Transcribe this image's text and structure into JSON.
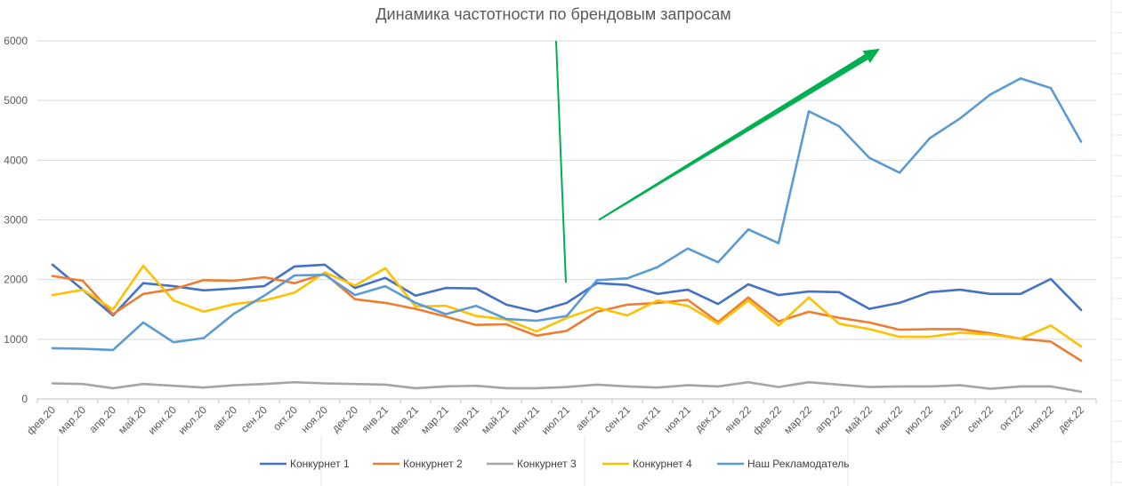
{
  "chart_data": {
    "type": "line",
    "title": "Динамика частотности по брендовым запросам",
    "xlabel": "",
    "ylabel": "",
    "ylim": [
      0,
      6000
    ],
    "yticks": [
      0,
      1000,
      2000,
      3000,
      4000,
      5000,
      6000
    ],
    "grid": true,
    "legend": "bottom",
    "categories": [
      "фев.20",
      "мар.20",
      "апр.20",
      "май.20",
      "июн.20",
      "июл.20",
      "авг.20",
      "сен.20",
      "окт.20",
      "ноя.20",
      "дек.20",
      "янв.21",
      "фев.21",
      "мар.21",
      "апр.21",
      "май.21",
      "июн.21",
      "июл.21",
      "авг.21",
      "сен.21",
      "окт.21",
      "ноя.21",
      "дек.21",
      "янв.22",
      "фев.22",
      "мар.22",
      "апр.22",
      "май.22",
      "июн.22",
      "июл.22",
      "авг.22",
      "сен.22",
      "окт.22",
      "ноя.22",
      "дек.22"
    ],
    "series": [
      {
        "name": "Конкурнет 1",
        "color": "#4472c4",
        "values": [
          2250,
          1830,
          1400,
          1940,
          1890,
          1820,
          1850,
          1890,
          2220,
          2250,
          1860,
          2030,
          1730,
          1860,
          1850,
          1580,
          1460,
          1610,
          1940,
          1910,
          1760,
          1830,
          1590,
          1920,
          1740,
          1800,
          1790,
          1510,
          1610,
          1790,
          1830,
          1760,
          1760,
          2010,
          1490
        ]
      },
      {
        "name": "Конкурнет 2",
        "color": "#ed7d31",
        "values": [
          2060,
          1980,
          1420,
          1760,
          1840,
          1990,
          1980,
          2040,
          1940,
          2100,
          1670,
          1610,
          1510,
          1380,
          1240,
          1250,
          1060,
          1140,
          1460,
          1580,
          1610,
          1660,
          1290,
          1700,
          1300,
          1460,
          1360,
          1280,
          1160,
          1170,
          1170,
          1100,
          1010,
          960,
          640
        ]
      },
      {
        "name": "Конкурнет 3",
        "color": "#a5a5a5",
        "values": [
          260,
          250,
          180,
          250,
          220,
          190,
          230,
          250,
          280,
          260,
          250,
          240,
          180,
          210,
          220,
          180,
          180,
          200,
          240,
          210,
          190,
          230,
          210,
          280,
          200,
          280,
          240,
          200,
          210,
          210,
          230,
          170,
          210,
          210,
          120
        ]
      },
      {
        "name": "Конкурнет 4",
        "color": "#ffc000",
        "values": [
          1740,
          1830,
          1500,
          2230,
          1650,
          1460,
          1590,
          1650,
          1780,
          2120,
          1900,
          2190,
          1550,
          1560,
          1390,
          1330,
          1130,
          1360,
          1530,
          1400,
          1650,
          1560,
          1260,
          1650,
          1230,
          1700,
          1260,
          1170,
          1040,
          1040,
          1110,
          1080,
          1010,
          1230,
          880
        ]
      },
      {
        "name": "Наш Рекламодатель",
        "color": "#5b9bd5",
        "values": [
          850,
          840,
          820,
          1280,
          950,
          1020,
          1430,
          1730,
          2070,
          2080,
          1740,
          1890,
          1610,
          1420,
          1560,
          1340,
          1310,
          1390,
          1990,
          2020,
          2210,
          2520,
          2290,
          2840,
          2610,
          4820,
          4570,
          4040,
          3790,
          4370,
          4700,
          5100,
          5370,
          5210,
          4310
        ]
      }
    ],
    "annotations": [
      {
        "type": "vertical-line",
        "color": "#00b050",
        "x_category": "июл.21",
        "y_from": 1950,
        "y_to": 6000
      },
      {
        "type": "trend-arrow",
        "color": "#00b050",
        "from": {
          "x_category": "авг.21",
          "y": 3000
        },
        "to": {
          "x_category": "май.22",
          "y": 5870
        }
      }
    ]
  }
}
